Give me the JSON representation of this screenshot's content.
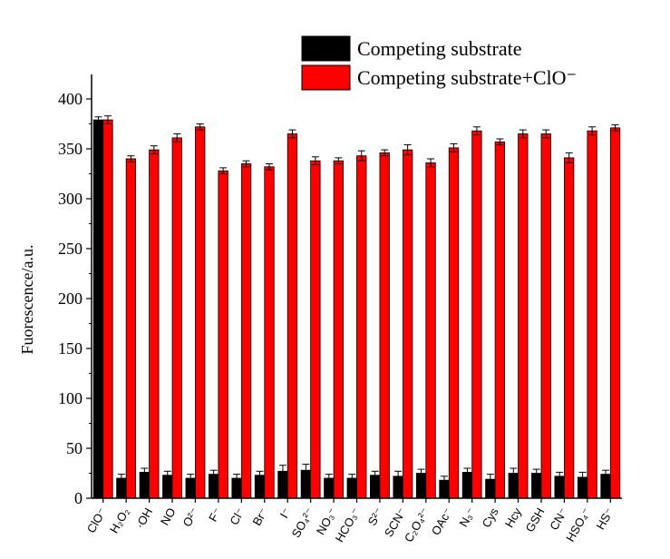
{
  "chart_data": {
    "type": "bar",
    "title": "",
    "xlabel": "",
    "ylabel": "Fuorescence/a.u.",
    "ylim": [
      0,
      420
    ],
    "yticks": [
      0,
      50,
      100,
      150,
      200,
      250,
      300,
      350,
      400
    ],
    "grid": false,
    "legend_position": "top-right",
    "categories": [
      "ClO⁻",
      "H₂O₂",
      "·OH",
      "NO",
      "O²⁻",
      "F⁻",
      "Cl⁻",
      "Br⁻",
      "I⁻",
      "SO₄²⁻",
      "NO₃⁻",
      "HCO₃⁻",
      "S²⁻",
      "SCN⁻",
      "C₂O₄²⁻",
      "OAc⁻",
      "N₃⁻",
      "Cys",
      "Hcy",
      "GSH",
      "CN⁻",
      "HSO₄⁻",
      "HS⁻"
    ],
    "series": [
      {
        "name": "Competing substrate",
        "color": "#000000",
        "values": [
          379,
          20,
          26,
          23,
          20,
          24,
          20,
          23,
          27,
          28,
          20,
          20,
          23,
          22,
          25,
          18,
          26,
          19,
          25,
          25,
          22,
          21,
          24
        ],
        "errors": [
          3,
          4,
          4,
          4,
          4,
          4,
          4,
          4,
          6,
          6,
          4,
          4,
          4,
          5,
          4,
          4,
          4,
          5,
          5,
          4,
          4,
          5,
          4
        ]
      },
      {
        "name": "Competing substrate+ClO⁻",
        "color": "#ff0000",
        "values": [
          379,
          340,
          349,
          361,
          372,
          328,
          335,
          332,
          365,
          338,
          338,
          343,
          346,
          349,
          336,
          351,
          368,
          357,
          365,
          365,
          341,
          368,
          371
        ],
        "errors": [
          4,
          3,
          4,
          4,
          3,
          3,
          3,
          3,
          4,
          4,
          3,
          5,
          3,
          5,
          4,
          4,
          4,
          3,
          4,
          4,
          5,
          4,
          3
        ]
      }
    ]
  }
}
